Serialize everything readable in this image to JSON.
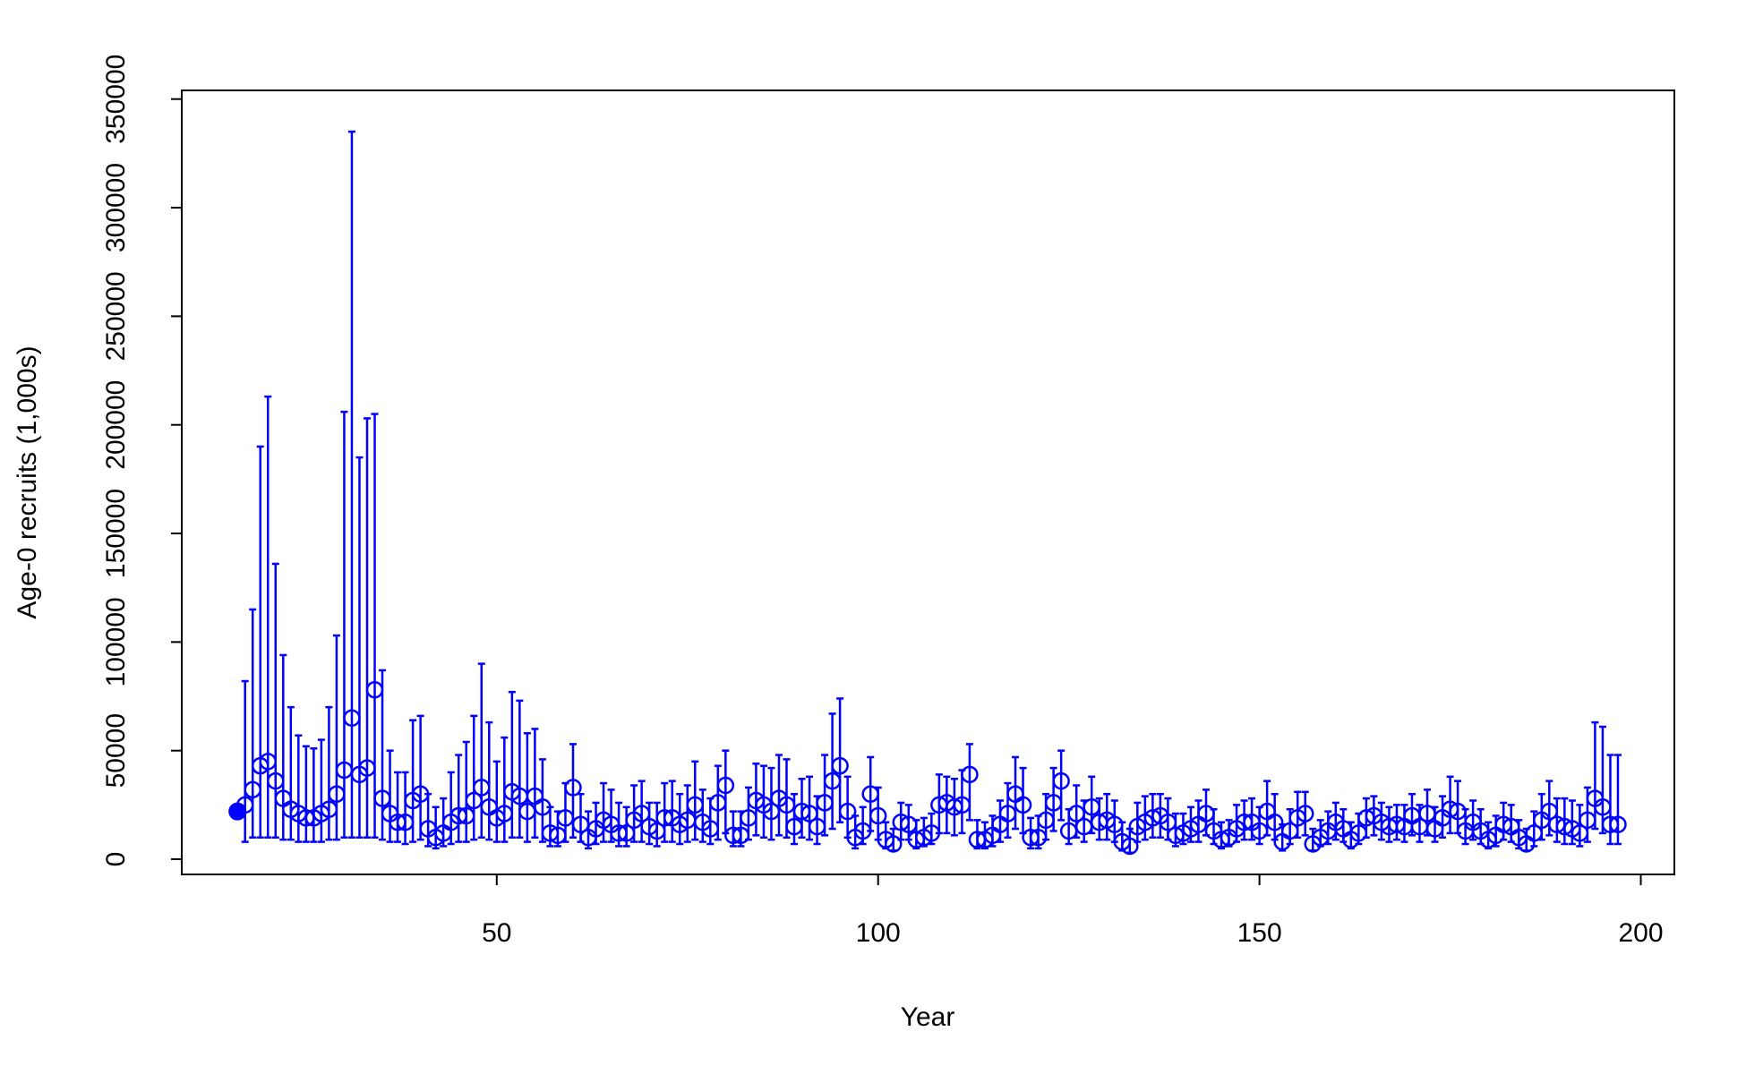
{
  "chart_data": {
    "type": "scatter",
    "x_label": "Year",
    "y_label": "Age-0 recruits (1,000s)",
    "x": [
      16,
      17,
      18,
      19,
      20,
      21,
      22,
      23,
      24,
      25,
      26,
      27,
      28,
      29,
      30,
      31,
      32,
      33,
      34,
      35,
      36,
      37,
      38,
      39,
      40,
      41,
      42,
      43,
      44,
      45,
      46,
      47,
      48,
      49,
      50,
      51,
      52,
      53,
      54,
      55,
      56,
      57,
      58,
      59,
      60,
      61,
      62,
      63,
      64,
      65,
      66,
      67,
      68,
      69,
      70,
      71,
      72,
      73,
      74,
      75,
      76,
      77,
      78,
      79,
      80,
      81,
      82,
      83,
      84,
      85,
      86,
      87,
      88,
      89,
      90,
      91,
      92,
      93,
      94,
      95,
      96,
      97,
      98,
      99,
      100,
      101,
      102,
      103,
      104,
      105,
      106,
      107,
      108,
      109,
      110,
      111,
      112,
      113,
      114,
      115,
      116,
      117,
      118,
      119,
      120,
      121,
      122,
      123,
      124,
      125,
      126,
      127,
      128,
      129,
      130,
      131,
      132,
      133,
      134,
      135,
      136,
      137,
      138,
      139,
      140,
      141,
      142,
      143,
      144,
      145,
      146,
      147,
      148,
      149,
      150,
      151,
      152,
      153,
      154,
      155,
      156,
      157,
      158,
      159,
      160,
      161,
      162,
      163,
      164,
      165,
      166,
      167,
      168,
      169,
      170,
      171,
      172,
      173,
      174,
      175,
      176,
      177,
      178,
      179,
      180,
      181,
      182,
      183,
      184,
      185,
      186,
      187,
      188,
      189,
      190,
      191,
      192,
      193,
      194,
      195,
      196,
      197
    ],
    "series": [
      {
        "color": "#0000ff",
        "values": [
          22000,
          25000,
          32000,
          43000,
          45000,
          36000,
          28000,
          23000,
          21000,
          19000,
          19000,
          21000,
          23000,
          30000,
          41000,
          65000,
          39000,
          42000,
          78000,
          28000,
          21000,
          17000,
          17000,
          27000,
          30000,
          14000,
          10000,
          12000,
          17000,
          20000,
          20000,
          27000,
          33000,
          24000,
          19000,
          21000,
          31000,
          29000,
          22000,
          29000,
          24000,
          12000,
          11000,
          19000,
          33000,
          16000,
          10000,
          14000,
          18000,
          16000,
          12000,
          12000,
          18000,
          21000,
          15000,
          13000,
          19000,
          19000,
          16000,
          18000,
          25000,
          17000,
          14000,
          26000,
          34000,
          11000,
          11000,
          19000,
          27000,
          25000,
          22000,
          28000,
          25000,
          15000,
          22000,
          21000,
          15000,
          26000,
          36000,
          43000,
          22000,
          10000,
          13000,
          30000,
          20000,
          9000,
          7000,
          17000,
          16000,
          9000,
          10000,
          12000,
          25000,
          26000,
          24000,
          25000,
          39000,
          9000,
          9000,
          11000,
          16000,
          21000,
          30000,
          25000,
          10000,
          10000,
          18000,
          26000,
          36000,
          13000,
          21000,
          15000,
          24000,
          17000,
          18000,
          16000,
          8000,
          6000,
          15000,
          17000,
          19000,
          20000,
          17000,
          11000,
          12000,
          14000,
          16000,
          21000,
          13000,
          9000,
          10000,
          14000,
          17000,
          17000,
          13000,
          22000,
          17000,
          8000,
          13000,
          19000,
          21000,
          7000,
          10000,
          13000,
          17000,
          14000,
          9000,
          12000,
          19000,
          20000,
          17000,
          15000,
          16000,
          15000,
          20000,
          15000,
          21000,
          14000,
          19000,
          23000,
          22000,
          13000,
          17000,
          13000,
          9000,
          11000,
          16000,
          15000,
          10000,
          7000,
          12000,
          18000,
          22000,
          16000,
          15000,
          14000,
          12000,
          18000,
          28000,
          24000,
          16000,
          16000
        ],
        "lower": [
          null,
          8000,
          10000,
          10000,
          10000,
          10000,
          9000,
          9000,
          8000,
          8000,
          8000,
          8000,
          9000,
          9000,
          10000,
          10000,
          10000,
          10000,
          10000,
          9000,
          8000,
          8000,
          7000,
          8000,
          9000,
          6000,
          5000,
          6000,
          7000,
          8000,
          8000,
          9000,
          10000,
          9000,
          8000,
          8000,
          10000,
          10000,
          8000,
          10000,
          8000,
          6000,
          6000,
          8000,
          10000,
          8000,
          5000,
          7000,
          8000,
          8000,
          6000,
          6000,
          8000,
          8000,
          7000,
          6000,
          8000,
          8000,
          7000,
          8000,
          9000,
          8000,
          7000,
          9000,
          12000,
          6000,
          6000,
          9000,
          11000,
          10000,
          9000,
          11000,
          10000,
          7000,
          10000,
          9000,
          7000,
          11000,
          14000,
          17000,
          10000,
          5000,
          7000,
          13000,
          9000,
          5000,
          4000,
          9000,
          9000,
          5000,
          6000,
          7000,
          12000,
          12000,
          11000,
          12000,
          18000,
          5000,
          5000,
          6000,
          8000,
          10000,
          14000,
          12000,
          5000,
          5000,
          9000,
          13000,
          18000,
          7000,
          10000,
          8000,
          12000,
          9000,
          9000,
          8000,
          4000,
          3000,
          8000,
          9000,
          10000,
          10000,
          9000,
          6000,
          7000,
          8000,
          8000,
          11000,
          7000,
          5000,
          6000,
          8000,
          9000,
          9000,
          7000,
          11000,
          9000,
          4000,
          7000,
          10000,
          11000,
          4000,
          6000,
          7000,
          9000,
          8000,
          5000,
          7000,
          10000,
          11000,
          9000,
          8000,
          9000,
          8000,
          11000,
          8000,
          11000,
          8000,
          10000,
          12000,
          12000,
          7000,
          9000,
          7000,
          5000,
          6000,
          9000,
          8000,
          5000,
          4000,
          6000,
          9000,
          11000,
          8000,
          7000,
          7000,
          6000,
          8000,
          14000,
          12000,
          7000,
          7000
        ],
        "upper": [
          null,
          82000,
          115000,
          190000,
          213000,
          136000,
          94000,
          70000,
          57000,
          52000,
          51000,
          55000,
          70000,
          103000,
          206000,
          335000,
          185000,
          203000,
          205000,
          87000,
          50000,
          40000,
          40000,
          64000,
          66000,
          30000,
          24000,
          28000,
          40000,
          48000,
          54000,
          66000,
          90000,
          63000,
          45000,
          56000,
          77000,
          73000,
          58000,
          60000,
          46000,
          24000,
          22000,
          35000,
          53000,
          30000,
          22000,
          26000,
          35000,
          32000,
          26000,
          24000,
          34000,
          36000,
          26000,
          26000,
          35000,
          36000,
          30000,
          34000,
          45000,
          32000,
          28000,
          43000,
          50000,
          22000,
          22000,
          33000,
          44000,
          43000,
          42000,
          48000,
          46000,
          30000,
          37000,
          38000,
          29000,
          48000,
          67000,
          74000,
          38000,
          20000,
          24000,
          47000,
          33000,
          17000,
          14000,
          26000,
          25000,
          18000,
          19000,
          21000,
          39000,
          38000,
          37000,
          41000,
          53000,
          18000,
          17000,
          20000,
          27000,
          35000,
          47000,
          42000,
          19000,
          20000,
          30000,
          42000,
          50000,
          23000,
          34000,
          27000,
          38000,
          28000,
          30000,
          27000,
          17000,
          14000,
          26000,
          29000,
          30000,
          30000,
          28000,
          21000,
          21000,
          24000,
          27000,
          32000,
          23000,
          17000,
          18000,
          25000,
          27000,
          28000,
          24000,
          36000,
          30000,
          16000,
          23000,
          31000,
          31000,
          14000,
          18000,
          22000,
          26000,
          23000,
          17000,
          21000,
          28000,
          29000,
          26000,
          24000,
          25000,
          25000,
          30000,
          25000,
          32000,
          24000,
          29000,
          38000,
          36000,
          23000,
          27000,
          23000,
          17000,
          20000,
          26000,
          25000,
          18000,
          14000,
          22000,
          30000,
          36000,
          28000,
          28000,
          27000,
          25000,
          33000,
          63000,
          61000,
          48000,
          48000
        ]
      }
    ],
    "xlim": [
      8.7,
      204.4
    ],
    "ylim": [
      -7000,
      354000
    ],
    "xticks": [
      50,
      100,
      150,
      200
    ],
    "yticks": [
      0,
      50000,
      100000,
      150000,
      200000,
      250000,
      300000,
      350000
    ]
  }
}
